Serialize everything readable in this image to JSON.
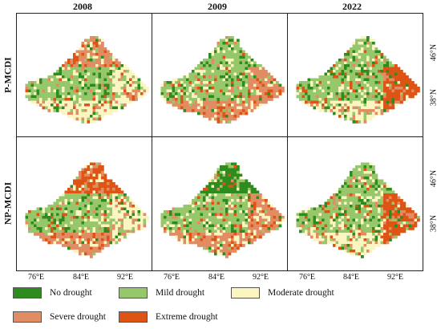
{
  "columns": [
    "2008",
    "2009",
    "2022"
  ],
  "rows": [
    "P-MCDI",
    "NP-MCDI"
  ],
  "x_ticks": [
    "76°E",
    "84°E",
    "92°E"
  ],
  "y_ticks": [
    "46°N",
    "38°N"
  ],
  "legend": [
    {
      "label": "No drought",
      "color": "#2e8b1e",
      "icon": "green-swatch"
    },
    {
      "label": "Mild drought",
      "color": "#96c76a",
      "icon": "light-green-swatch"
    },
    {
      "label": "Moderate drought",
      "color": "#fbf5c2",
      "icon": "cream-swatch"
    },
    {
      "label": "Severe drought",
      "color": "#e28c64",
      "icon": "salmon-swatch"
    },
    {
      "label": "Extreme drought",
      "color": "#de5414",
      "icon": "orange-swatch"
    }
  ],
  "dominance": {
    "P-MCDI-2008": {
      "north": 3,
      "east": 2,
      "south": 2,
      "center": 1
    },
    "P-MCDI-2009": {
      "north": 1,
      "east": 3,
      "south": 3,
      "center": 1
    },
    "P-MCDI-2022": {
      "north": 1,
      "east": 4,
      "south": 2,
      "center": 1
    },
    "NP-MCDI-2008": {
      "north": 4,
      "east": 2,
      "south": 3,
      "center": 1
    },
    "NP-MCDI-2009": {
      "north": 0,
      "east": 3,
      "south": 3,
      "center": 1
    },
    "NP-MCDI-2022": {
      "north": 1,
      "east": 4,
      "south": 2,
      "center": 1
    }
  }
}
